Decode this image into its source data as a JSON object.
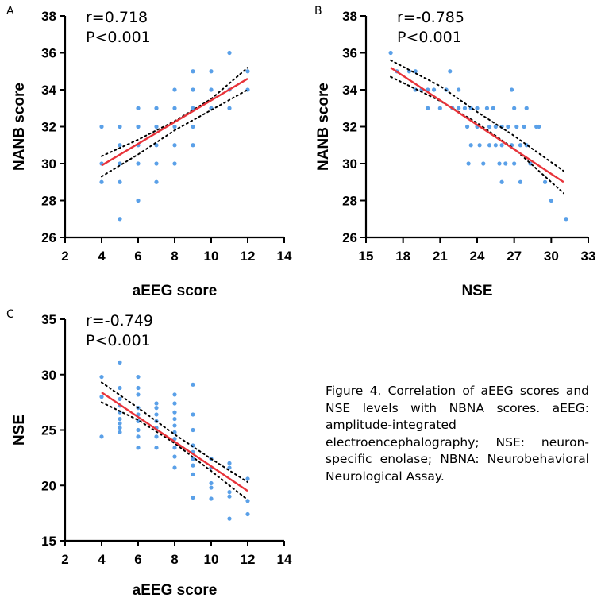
{
  "colors": {
    "point": "#5aa0e8",
    "fit": "#e8333a",
    "ci": "#000000",
    "axis": "#000000"
  },
  "caption": {
    "label": "Figure 4.",
    "text": "Correlation of aEEG scores and NSE levels with NBNA scores. aEEG: amplitude-integrated electroencephalography; NSE: neuron-specific enolase; NBNA: Neurobehavioral Neurological Assay."
  },
  "chart_data": [
    {
      "panel": "A",
      "type": "scatter",
      "xlabel": "aEEG score",
      "ylabel": "NANB score",
      "stat_r": "r=0.718",
      "stat_p": "P<0.001",
      "xlim": [
        2,
        14
      ],
      "ylim": [
        26,
        38
      ],
      "xticks": [
        2,
        4,
        6,
        8,
        10,
        12,
        14
      ],
      "yticks": [
        26,
        28,
        30,
        32,
        34,
        36,
        38
      ],
      "points": [
        [
          4,
          32
        ],
        [
          4,
          30
        ],
        [
          4,
          29
        ],
        [
          5,
          32
        ],
        [
          5,
          31
        ],
        [
          5,
          30
        ],
        [
          5,
          29
        ],
        [
          5,
          27
        ],
        [
          6,
          33
        ],
        [
          6,
          32
        ],
        [
          6,
          31
        ],
        [
          6,
          30
        ],
        [
          6,
          28
        ],
        [
          7,
          33
        ],
        [
          7,
          32
        ],
        [
          7,
          31
        ],
        [
          7,
          30
        ],
        [
          7,
          29
        ],
        [
          8,
          34
        ],
        [
          8,
          33
        ],
        [
          8,
          32
        ],
        [
          8,
          31
        ],
        [
          8,
          30
        ],
        [
          9,
          35
        ],
        [
          9,
          34
        ],
        [
          9,
          33
        ],
        [
          9,
          32
        ],
        [
          9,
          31
        ],
        [
          10,
          35
        ],
        [
          10,
          34
        ],
        [
          10,
          33
        ],
        [
          11,
          36
        ],
        [
          11,
          34
        ],
        [
          11,
          33
        ],
        [
          12,
          35
        ],
        [
          12,
          34
        ]
      ],
      "fit": [
        [
          4,
          29.9
        ],
        [
          12,
          34.6
        ]
      ],
      "ci_upper": [
        [
          4,
          30.4
        ],
        [
          6,
          31.3
        ],
        [
          8,
          32.3
        ],
        [
          10,
          33.5
        ],
        [
          12,
          35.2
        ]
      ],
      "ci_lower": [
        [
          4,
          29.3
        ],
        [
          6,
          30.5
        ],
        [
          8,
          31.8
        ],
        [
          10,
          32.9
        ],
        [
          12,
          34.0
        ]
      ]
    },
    {
      "panel": "B",
      "type": "scatter",
      "xlabel": "NSE",
      "ylabel": "NANB score",
      "stat_r": "r=-0.785",
      "stat_p": "P<0.001",
      "xlim": [
        15,
        33
      ],
      "ylim": [
        26,
        38
      ],
      "xticks": [
        15,
        18,
        21,
        24,
        27,
        30,
        33
      ],
      "yticks": [
        26,
        28,
        30,
        32,
        34,
        36,
        38
      ],
      "points": [
        [
          17,
          36
        ],
        [
          17.5,
          35
        ],
        [
          18.5,
          35
        ],
        [
          19,
          35
        ],
        [
          19,
          34
        ],
        [
          19.5,
          34
        ],
        [
          20,
          34
        ],
        [
          20,
          33
        ],
        [
          20.5,
          34
        ],
        [
          21,
          33
        ],
        [
          21.5,
          34
        ],
        [
          21.8,
          35
        ],
        [
          22,
          33
        ],
        [
          22.5,
          34
        ],
        [
          22.5,
          33
        ],
        [
          23,
          33
        ],
        [
          23.2,
          32
        ],
        [
          23.5,
          33
        ],
        [
          23.5,
          31
        ],
        [
          23.3,
          30
        ],
        [
          24,
          33
        ],
        [
          24,
          32
        ],
        [
          24.2,
          31
        ],
        [
          24.5,
          30
        ],
        [
          24.8,
          33
        ],
        [
          25,
          32
        ],
        [
          25,
          31
        ],
        [
          25.3,
          33
        ],
        [
          25.5,
          32
        ],
        [
          25.5,
          31
        ],
        [
          25.8,
          30
        ],
        [
          26,
          32
        ],
        [
          26,
          31
        ],
        [
          26,
          29
        ],
        [
          26.3,
          30
        ],
        [
          26.5,
          32
        ],
        [
          26.8,
          34
        ],
        [
          26.8,
          31
        ],
        [
          27,
          33
        ],
        [
          27,
          30
        ],
        [
          27.2,
          32
        ],
        [
          27.5,
          31
        ],
        [
          27.5,
          29
        ],
        [
          27.8,
          32
        ],
        [
          28,
          33
        ],
        [
          28,
          31
        ],
        [
          28.3,
          30
        ],
        [
          28.8,
          32
        ],
        [
          29,
          32
        ],
        [
          29.5,
          29
        ],
        [
          30,
          28
        ],
        [
          31.2,
          27
        ]
      ],
      "fit": [
        [
          17,
          35.2
        ],
        [
          31,
          29.0
        ]
      ],
      "ci_upper": [
        [
          17,
          35.6
        ],
        [
          21,
          34.2
        ],
        [
          24,
          32.8
        ],
        [
          27,
          31.5
        ],
        [
          31,
          29.6
        ]
      ],
      "ci_lower": [
        [
          17,
          34.7
        ],
        [
          21,
          33.4
        ],
        [
          24,
          32.2
        ],
        [
          27,
          30.8
        ],
        [
          31,
          28.4
        ]
      ]
    },
    {
      "panel": "C",
      "type": "scatter",
      "xlabel": "aEEG score",
      "ylabel": "NSE",
      "stat_r": "r=-0.749",
      "stat_p": "P<0.001",
      "xlim": [
        2,
        14
      ],
      "ylim": [
        15,
        35
      ],
      "xticks": [
        2,
        4,
        6,
        8,
        10,
        12,
        14
      ],
      "yticks": [
        15,
        20,
        25,
        30,
        35
      ],
      "points": [
        [
          4,
          29.8
        ],
        [
          4,
          28
        ],
        [
          4,
          24.4
        ],
        [
          5,
          31.1
        ],
        [
          5,
          28.8
        ],
        [
          5,
          27.8
        ],
        [
          5,
          27.2
        ],
        [
          5,
          26.6
        ],
        [
          5,
          26
        ],
        [
          5,
          25.6
        ],
        [
          5,
          25.2
        ],
        [
          5,
          24.8
        ],
        [
          6,
          29.8
        ],
        [
          6,
          28.8
        ],
        [
          6,
          28.2
        ],
        [
          6,
          27
        ],
        [
          6,
          26.4
        ],
        [
          6,
          25.8
        ],
        [
          6,
          25
        ],
        [
          6,
          24.4
        ],
        [
          6,
          23.4
        ],
        [
          7,
          27.4
        ],
        [
          7,
          27
        ],
        [
          7,
          26.4
        ],
        [
          7,
          25.8
        ],
        [
          7,
          25.2
        ],
        [
          7,
          24.4
        ],
        [
          7,
          23.4
        ],
        [
          8,
          28.2
        ],
        [
          8,
          27.4
        ],
        [
          8,
          26.6
        ],
        [
          8,
          26
        ],
        [
          8,
          25.4
        ],
        [
          8,
          24.8
        ],
        [
          8,
          24.2
        ],
        [
          8,
          23.4
        ],
        [
          8,
          22.6
        ],
        [
          8,
          21.6
        ],
        [
          9,
          29.1
        ],
        [
          9,
          26.4
        ],
        [
          9,
          25
        ],
        [
          9,
          23.6
        ],
        [
          9,
          23
        ],
        [
          9,
          22.4
        ],
        [
          9,
          21.8
        ],
        [
          9,
          21
        ],
        [
          9,
          18.9
        ],
        [
          10,
          22.4
        ],
        [
          10,
          21.6
        ],
        [
          10,
          20.2
        ],
        [
          10,
          19.8
        ],
        [
          10,
          18.8
        ],
        [
          11,
          22
        ],
        [
          11,
          21.6
        ],
        [
          11,
          19.4
        ],
        [
          11,
          19
        ],
        [
          11,
          17
        ],
        [
          12,
          20.6
        ],
        [
          12,
          18.6
        ],
        [
          12,
          17.4
        ]
      ],
      "fit": [
        [
          4,
          28.4
        ],
        [
          12,
          19.5
        ]
      ],
      "ci_upper": [
        [
          4,
          29.3
        ],
        [
          6,
          27.0
        ],
        [
          8,
          24.6
        ],
        [
          10,
          22.4
        ],
        [
          12,
          20.3
        ]
      ],
      "ci_lower": [
        [
          4,
          27.5
        ],
        [
          6,
          25.9
        ],
        [
          8,
          23.8
        ],
        [
          10,
          21.3
        ],
        [
          12,
          18.7
        ]
      ]
    }
  ]
}
